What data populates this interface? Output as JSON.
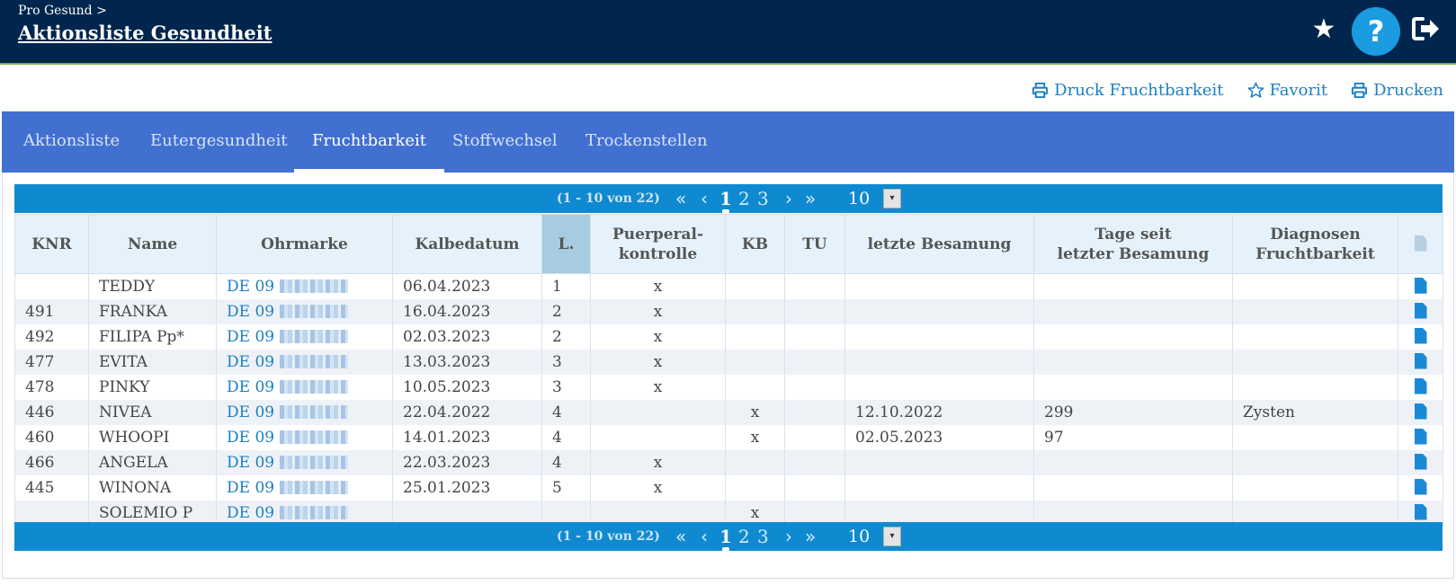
{
  "header": {
    "breadcrumb": "Pro Gesund >",
    "title": "Aktionsliste Gesundheit"
  },
  "toolbar": {
    "print_fertility": "Druck Fruchtbarkeit",
    "favorite": "Favorit",
    "print": "Drucken"
  },
  "tabs": [
    "Aktionsliste",
    "Eutergesundheit",
    "Fruchtbarkeit",
    "Stoffwechsel",
    "Trockenstellen"
  ],
  "active_tab": "Fruchtbarkeit",
  "pager": {
    "count": "(1 - 10 von 22)",
    "pages": [
      "1",
      "2",
      "3"
    ],
    "current_page": "1",
    "page_size": "10"
  },
  "table": {
    "headers": [
      "KNR",
      "Name",
      "Ohrmarke",
      "Kalbedatum",
      "L.",
      "Puerperal-\nkontrolle",
      "KB",
      "TU",
      "letzte Besamung",
      "Tage seit\nletzter Besamung",
      "Diagnosen\nFruchtbarkeit"
    ],
    "rows": [
      {
        "knr": "",
        "name": "TEDDY",
        "ohrmarke": "DE 09",
        "kalbedatum": "06.04.2023",
        "l": "1",
        "puerperal": "x",
        "kb": "",
        "tu": "",
        "besamung": "",
        "tage": "",
        "diagnose": ""
      },
      {
        "knr": "491",
        "name": "FRANKA",
        "ohrmarke": "DE 09",
        "kalbedatum": "16.04.2023",
        "l": "2",
        "puerperal": "x",
        "kb": "",
        "tu": "",
        "besamung": "",
        "tage": "",
        "diagnose": ""
      },
      {
        "knr": "492",
        "name": "FILIPA Pp*",
        "ohrmarke": "DE 09",
        "kalbedatum": "02.03.2023",
        "l": "2",
        "puerperal": "x",
        "kb": "",
        "tu": "",
        "besamung": "",
        "tage": "",
        "diagnose": ""
      },
      {
        "knr": "477",
        "name": "EVITA",
        "ohrmarke": "DE 09",
        "kalbedatum": "13.03.2023",
        "l": "3",
        "puerperal": "x",
        "kb": "",
        "tu": "",
        "besamung": "",
        "tage": "",
        "diagnose": ""
      },
      {
        "knr": "478",
        "name": "PINKY",
        "ohrmarke": "DE 09",
        "kalbedatum": "10.05.2023",
        "l": "3",
        "puerperal": "x",
        "kb": "",
        "tu": "",
        "besamung": "",
        "tage": "",
        "diagnose": ""
      },
      {
        "knr": "446",
        "name": "NIVEA",
        "ohrmarke": "DE 09",
        "kalbedatum": "22.04.2022",
        "l": "4",
        "puerperal": "",
        "kb": "x",
        "tu": "",
        "besamung": "12.10.2022",
        "tage": "299",
        "diagnose": "Zysten"
      },
      {
        "knr": "460",
        "name": "WHOOPI",
        "ohrmarke": "DE 09",
        "kalbedatum": "14.01.2023",
        "l": "4",
        "puerperal": "",
        "kb": "x",
        "tu": "",
        "besamung": "02.05.2023",
        "tage": "97",
        "diagnose": ""
      },
      {
        "knr": "466",
        "name": "ANGELA",
        "ohrmarke": "DE 09",
        "kalbedatum": "22.03.2023",
        "l": "4",
        "puerperal": "x",
        "kb": "",
        "tu": "",
        "besamung": "",
        "tage": "",
        "diagnose": ""
      },
      {
        "knr": "445",
        "name": "WINONA",
        "ohrmarke": "DE 09",
        "kalbedatum": "25.01.2023",
        "l": "5",
        "puerperal": "x",
        "kb": "",
        "tu": "",
        "besamung": "",
        "tage": "",
        "diagnose": ""
      },
      {
        "knr": "",
        "name": "SOLEMIO P",
        "ohrmarke": "DE 09",
        "kalbedatum": "",
        "l": "",
        "puerperal": "",
        "kb": "x",
        "tu": "",
        "besamung": "",
        "tage": "",
        "diagnose": ""
      }
    ]
  },
  "icons": {
    "favorite": "star-icon",
    "help": "help-icon",
    "logout": "logout-icon",
    "print": "printer-icon",
    "document": "document-icon"
  },
  "colors": {
    "header_bg": "#00264d",
    "tab_bar": "#4170d1",
    "pager_bar": "#0f8ad0",
    "link": "#1a7fc4"
  }
}
